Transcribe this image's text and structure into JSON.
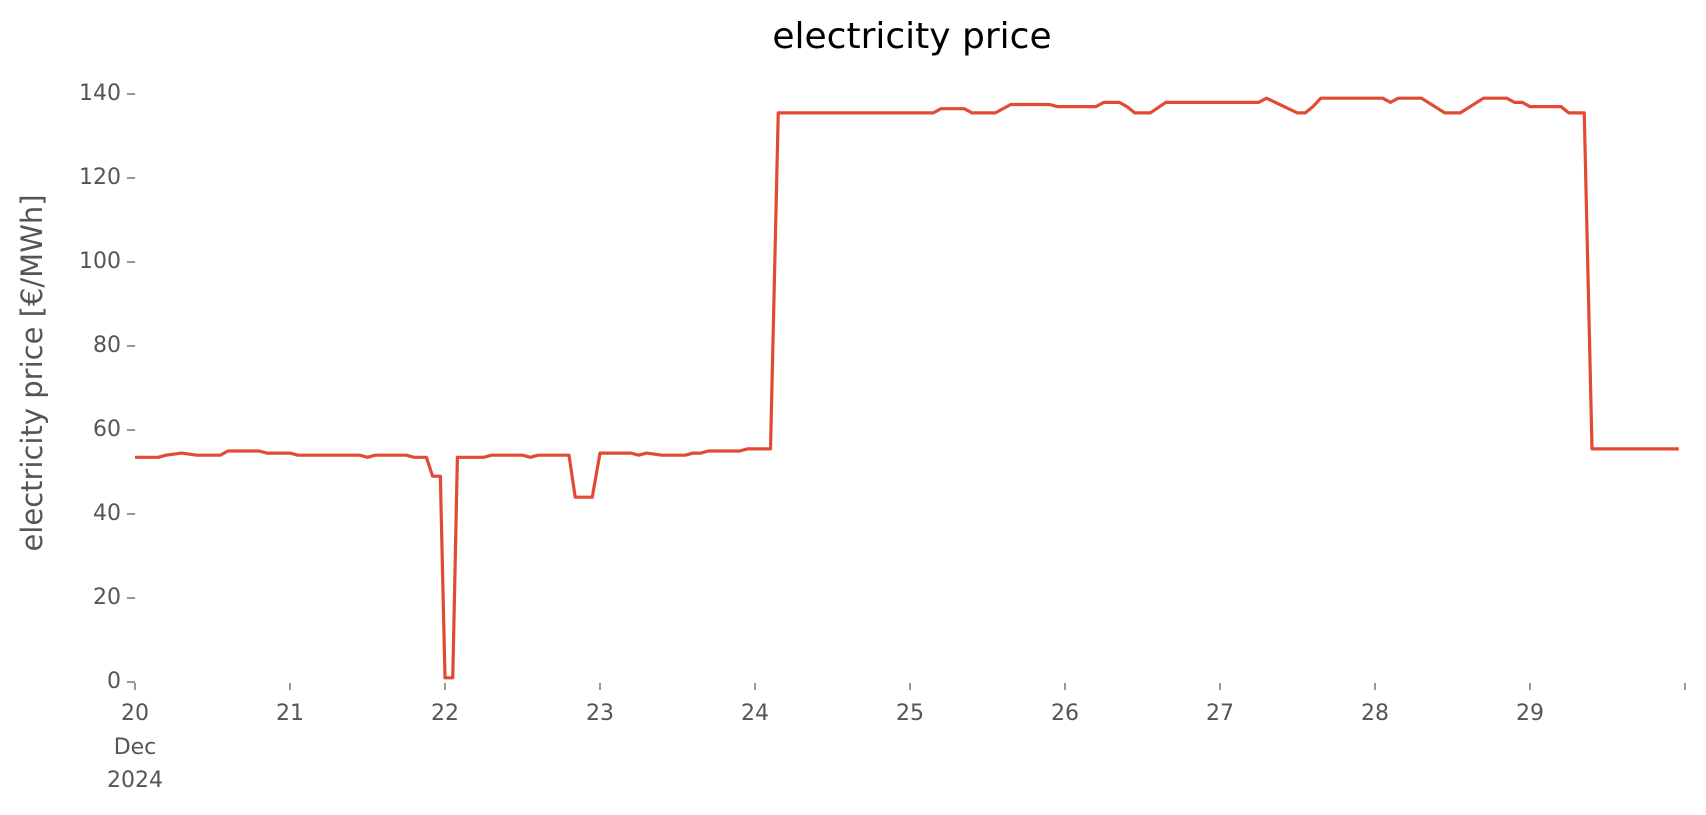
{
  "chart_data": {
    "type": "line",
    "title": "electricity price",
    "y_label": "electricity price [€/MWh]",
    "x": [
      20,
      20.15,
      20.2,
      20.3,
      20.4,
      20.55,
      20.6,
      20.8,
      20.85,
      21.0,
      21.05,
      21.45,
      21.5,
      21.55,
      21.75,
      21.8,
      21.88,
      21.92,
      21.97,
      22.0,
      22.05,
      22.08,
      22.25,
      22.3,
      22.5,
      22.55,
      22.6,
      22.8,
      22.84,
      22.95,
      23.0,
      23.2,
      23.25,
      23.3,
      23.4,
      23.55,
      23.6,
      23.65,
      23.7,
      23.9,
      23.95,
      24.1,
      24.15,
      25.15,
      25.2,
      25.35,
      25.4,
      25.55,
      25.65,
      25.9,
      25.95,
      26.2,
      26.25,
      26.35,
      26.4,
      26.45,
      26.55,
      26.65,
      27.25,
      27.3,
      27.5,
      27.55,
      27.6,
      27.65,
      28.05,
      28.1,
      28.15,
      28.3,
      28.45,
      28.55,
      28.7,
      28.85,
      28.9,
      28.95,
      29.0,
      29.2,
      29.25,
      29.35,
      29.4,
      29.96
    ],
    "values": [
      53.5,
      53.5,
      54,
      54.5,
      54,
      54,
      55,
      55,
      54.5,
      54.5,
      54,
      54,
      53.5,
      54,
      54,
      53.5,
      53.5,
      49,
      49,
      1,
      1,
      53.5,
      53.5,
      54,
      54,
      53.5,
      54,
      54,
      44,
      44,
      54.5,
      54.5,
      54,
      54.5,
      54,
      54,
      54.5,
      54.5,
      55,
      55,
      55.5,
      55.5,
      135.5,
      135.5,
      136.5,
      136.5,
      135.5,
      135.5,
      137.5,
      137.5,
      137,
      137,
      138,
      138,
      137,
      135.5,
      135.5,
      138,
      138,
      139,
      135.5,
      135.5,
      137,
      139,
      139,
      138,
      139,
      139,
      135.5,
      135.5,
      139,
      139,
      138,
      138,
      137,
      137,
      135.5,
      135.5,
      55.5,
      55.5
    ],
    "color": "#e24a33",
    "xlim": [
      20,
      30
    ],
    "xticks": [
      20,
      21,
      22,
      23,
      24,
      25,
      26,
      27,
      28,
      29
    ],
    "xtick_sublabels": [
      "Dec",
      "2024"
    ],
    "ylim": [
      0,
      145
    ],
    "yticks": [
      0,
      20,
      40,
      60,
      80,
      100,
      120,
      140
    ],
    "grid": false
  }
}
